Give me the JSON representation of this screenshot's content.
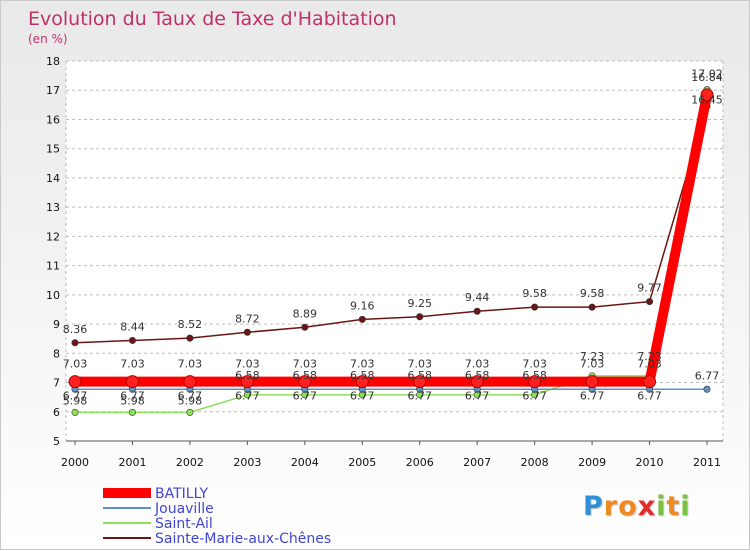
{
  "chart_data": {
    "type": "line",
    "title": "Evolution du Taux de Taxe d'Habitation",
    "subtitle": "(en %)",
    "ylim": [
      5,
      18
    ],
    "yticks": [
      5,
      6,
      7,
      8,
      9,
      10,
      11,
      12,
      13,
      14,
      15,
      16,
      17,
      18
    ],
    "x": [
      "2000",
      "2001",
      "2002",
      "2003",
      "2004",
      "2005",
      "2006",
      "2007",
      "2008",
      "2009",
      "2010",
      "2011"
    ],
    "grid": "horizontal-dashed",
    "legend_position": "bottom-left",
    "series": [
      {
        "name": "BATILLY",
        "color": "#ff0000",
        "values": [
          7.03,
          7.03,
          7.03,
          7.03,
          7.03,
          7.03,
          7.03,
          7.03,
          7.03,
          7.03,
          7.03,
          16.84
        ],
        "labels": [
          "7.03",
          "7.03",
          "7.03",
          "7.03",
          "7.03",
          "7.03",
          "7.03",
          "7.03",
          "7.03",
          "7.03",
          "7.03",
          "16.84"
        ]
      },
      {
        "name": "Jouaville",
        "color": "#5e93c8",
        "values": [
          6.77,
          6.77,
          6.77,
          6.77,
          6.77,
          6.77,
          6.77,
          6.77,
          6.77,
          6.77,
          6.77,
          6.77
        ],
        "labels": [
          "6.77",
          "6.77",
          "6.77",
          "6.77",
          "6.77",
          "6.77",
          "6.77",
          "6.77",
          "6.77",
          "6.77",
          "6.77",
          "6.77"
        ]
      },
      {
        "name": "Saint-Ail",
        "color": "#8ee05a",
        "values": [
          5.98,
          5.98,
          5.98,
          6.58,
          6.58,
          6.58,
          6.58,
          6.58,
          6.58,
          7.23,
          7.23,
          17.02
        ],
        "labels": [
          "5.98",
          "5.98",
          "5.98",
          "6.58",
          "6.58",
          "6.58",
          "6.58",
          "6.58",
          "6.58",
          "7.23",
          "7.23",
          "17.02"
        ]
      },
      {
        "name": "Sainte-Marie-aux-Chênes",
        "color": "#6b1616",
        "values": [
          8.36,
          8.44,
          8.52,
          8.72,
          8.89,
          9.16,
          9.25,
          9.44,
          9.58,
          9.58,
          9.77,
          16.45
        ],
        "labels": [
          "8.36",
          "8.44",
          "8.52",
          "8.72",
          "8.89",
          "9.16",
          "9.25",
          "9.44",
          "9.58",
          "9.58",
          "9.77",
          "16.45"
        ]
      }
    ]
  },
  "logo": {
    "letters": [
      "P",
      "r",
      "o",
      "x",
      "i",
      "t",
      "i"
    ]
  }
}
